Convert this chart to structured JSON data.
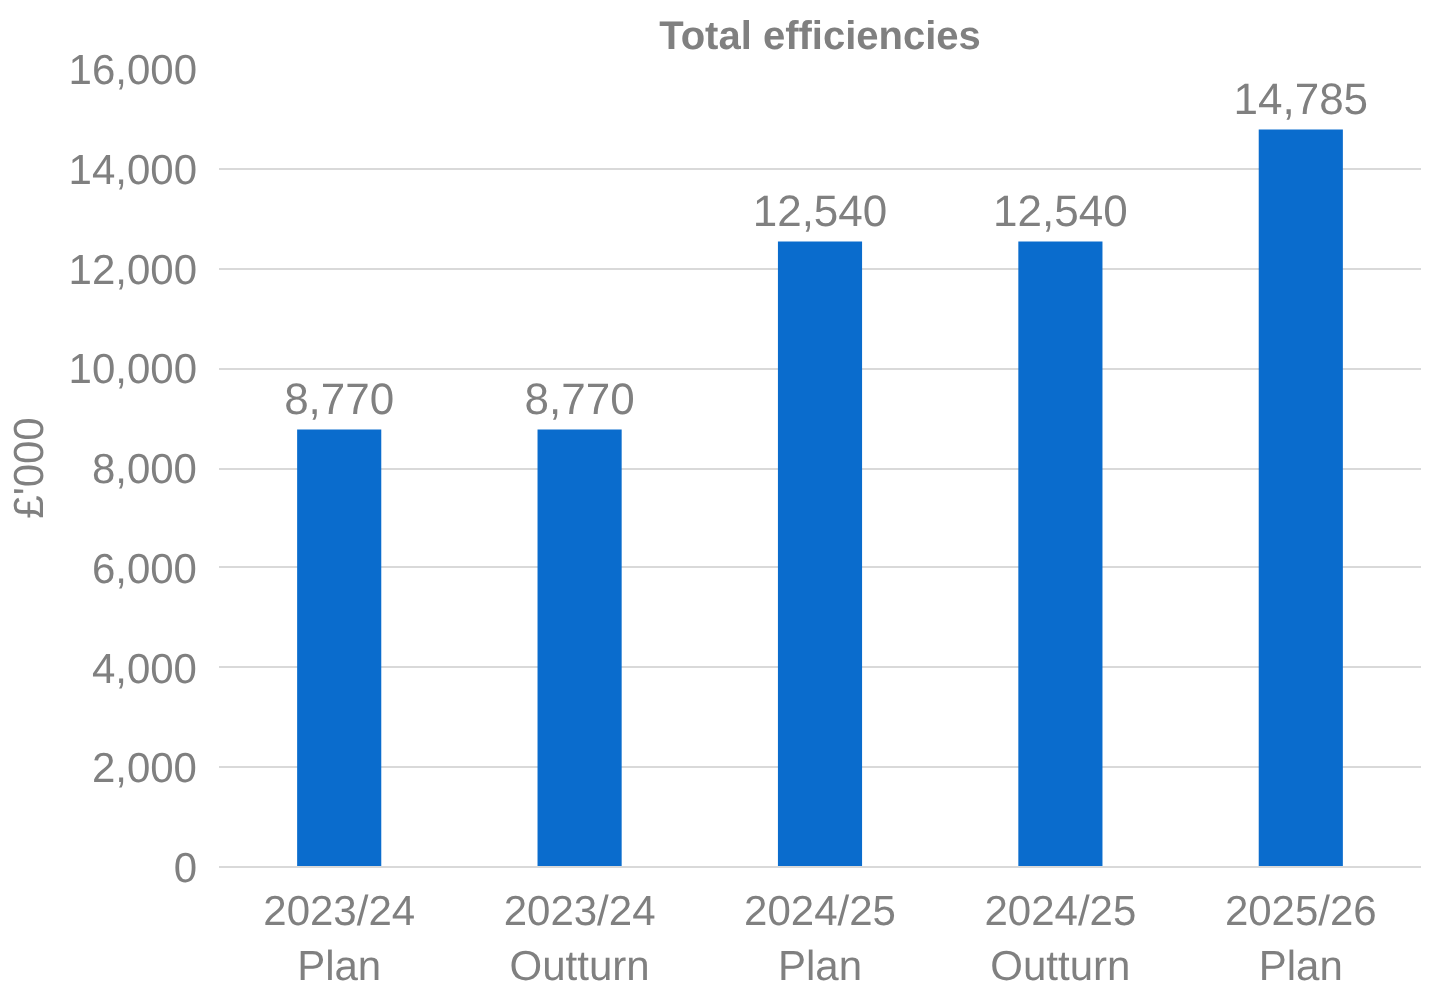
{
  "chart_data": {
    "type": "bar",
    "title": "Total efficiencies",
    "ylabel": "£'000",
    "categories": [
      "2023/24 Plan",
      "2023/24 Outturn",
      "2024/25 Plan",
      "2024/25 Outturn",
      "2025/26 Plan"
    ],
    "values": [
      8770,
      8770,
      12540,
      12540,
      14785
    ],
    "color": "#0a6ccd",
    "value_labels": [
      "8,770",
      "8,770",
      "12,540",
      "12,540",
      "14,785"
    ],
    "ylim": [
      0,
      16000
    ],
    "yticks": [
      0,
      {
        "value": 2000,
        "label": "2,000"
      },
      {
        "value": 4000,
        "label": "4,000"
      },
      {
        "value": 6000,
        "label": "6,000"
      },
      {
        "value": 8000,
        "label": "8,000"
      },
      {
        "value": 10000,
        "label": "10,000"
      },
      {
        "value": 12000,
        "label": "12,000"
      },
      {
        "value": 14000,
        "label": "14,000"
      },
      {
        "value": 16000,
        "label": "16,000"
      }
    ],
    "grid": "y"
  }
}
